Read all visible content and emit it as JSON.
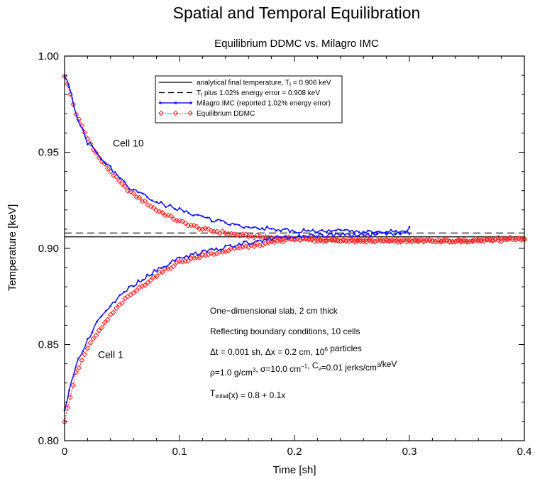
{
  "chart_data": {
    "type": "line",
    "title": "Spatial and Temporal Equilibration",
    "subtitle": "Equilibrium DDMC vs. Milagro IMC",
    "xlabel": "Time [sh]",
    "ylabel": "Temperature [keV]",
    "xlim": [
      0,
      0.4
    ],
    "ylim": [
      0.8,
      1.0
    ],
    "xticks": [
      "0",
      "0.1",
      "0.2",
      "0.3",
      "0.4"
    ],
    "yticks": [
      "0.80",
      "0.85",
      "0.90",
      "0.95",
      "1.00"
    ],
    "grid": false,
    "legend_position": "top-left",
    "legend": [
      {
        "prefix": "analytical final temperature, T",
        "sub": "f",
        "suffix": " = 0.906 keV",
        "style": "solid",
        "color": "#000000"
      },
      {
        "prefix": "T",
        "sub": "f",
        "suffix": " plus 1.02% energy error = 0.908 keV",
        "style": "dashed",
        "color": "#000000"
      },
      {
        "prefix": "Milagro IMC (reported 1.02% energy error)",
        "sub": "",
        "suffix": "",
        "style": "marker-line",
        "color": "#1a1aff"
      },
      {
        "prefix": "Equilibrium DDMC",
        "sub": "",
        "suffix": "",
        "style": "diamond-dotted",
        "color": "#ff2222"
      }
    ],
    "hlines": [
      {
        "y": 0.906,
        "style": "solid",
        "color": "#000000"
      },
      {
        "y": 0.908,
        "style": "dashed",
        "color": "#000000"
      }
    ],
    "series": [
      {
        "name": "Milagro IMC (reported 1.02% energy error)",
        "color": "#1a1aff",
        "curves": [
          {
            "x": [
              0,
              0.005,
              0.01,
              0.02,
              0.025,
              0.03,
              0.04,
              0.05,
              0.06,
              0.08,
              0.1,
              0.12,
              0.15,
              0.18,
              0.2,
              0.22,
              0.25,
              0.27,
              0.29,
              0.3
            ],
            "y": [
              0.99,
              0.982,
              0.97,
              0.955,
              0.953,
              0.947,
              0.942,
              0.935,
              0.93,
              0.924,
              0.92,
              0.916,
              0.912,
              0.91,
              0.909,
              0.909,
              0.909,
              0.908,
              0.909,
              0.91
            ]
          },
          {
            "x": [
              0,
              0.005,
              0.01,
              0.02,
              0.025,
              0.03,
              0.04,
              0.05,
              0.06,
              0.08,
              0.1,
              0.12,
              0.15,
              0.18,
              0.2,
              0.22,
              0.25,
              0.27,
              0.29,
              0.3
            ],
            "y": [
              0.815,
              0.828,
              0.84,
              0.852,
              0.858,
              0.863,
              0.87,
              0.876,
              0.881,
              0.889,
              0.895,
              0.898,
              0.902,
              0.905,
              0.906,
              0.907,
              0.907,
              0.907,
              0.908,
              0.908
            ]
          }
        ]
      },
      {
        "name": "Equilibrium DDMC",
        "color": "#ff2222",
        "curves": [
          {
            "x": [
              0,
              0.005,
              0.01,
              0.02,
              0.03,
              0.04,
              0.05,
              0.06,
              0.08,
              0.1,
              0.12,
              0.15,
              0.17,
              0.2,
              0.22,
              0.25,
              0.27,
              0.3,
              0.32,
              0.35,
              0.37,
              0.4
            ],
            "y": [
              0.99,
              0.98,
              0.97,
              0.957,
              0.947,
              0.94,
              0.933,
              0.928,
              0.92,
              0.914,
              0.91,
              0.907,
              0.906,
              0.905,
              0.904,
              0.904,
              0.904,
              0.904,
              0.904,
              0.904,
              0.905,
              0.905
            ]
          },
          {
            "x": [
              0,
              0.005,
              0.01,
              0.02,
              0.03,
              0.04,
              0.05,
              0.06,
              0.08,
              0.1,
              0.12,
              0.15,
              0.17,
              0.2,
              0.22,
              0.25,
              0.27,
              0.3,
              0.32,
              0.35,
              0.37,
              0.4
            ],
            "y": [
              0.81,
              0.823,
              0.835,
              0.848,
              0.857,
              0.865,
              0.872,
              0.877,
              0.886,
              0.893,
              0.896,
              0.9,
              0.902,
              0.905,
              0.905,
              0.904,
              0.904,
              0.904,
              0.904,
              0.904,
              0.904,
              0.905
            ]
          }
        ]
      }
    ],
    "annotations": {
      "cell10": {
        "text": "Cell 10",
        "x": 0.042,
        "y": 0.953
      },
      "cell1": {
        "text": "Cell 1",
        "x": 0.029,
        "y": 0.843
      },
      "info": [
        {
          "parts": [
            {
              "t": "One−dimensional slab, 2 cm thick"
            }
          ]
        },
        {
          "parts": [
            {
              "t": "Reflecting boundary conditions, 10 cells"
            }
          ]
        },
        {
          "parts": [
            {
              "t": "Δt = 0.001 sh, Δx = 0.2 cm, 10"
            },
            {
              "t": "6",
              "sup": true
            },
            {
              "t": " particles"
            }
          ]
        },
        {
          "parts": [
            {
              "t": "ρ=1.0 g/cm"
            },
            {
              "t": "3",
              "sup": true
            },
            {
              "t": ", σ=10.0 cm"
            },
            {
              "t": "−1",
              "sup": true
            },
            {
              "t": ", C"
            },
            {
              "t": "v",
              "sub": true
            },
            {
              "t": "=0.01 jerks/cm"
            },
            {
              "t": "3",
              "sup": true
            },
            {
              "t": "/keV"
            }
          ]
        },
        {
          "parts": [
            {
              "t": "T"
            },
            {
              "t": "initial",
              "sub": true
            },
            {
              "t": "(x) = 0.8 + 0.1x"
            }
          ]
        }
      ]
    }
  }
}
